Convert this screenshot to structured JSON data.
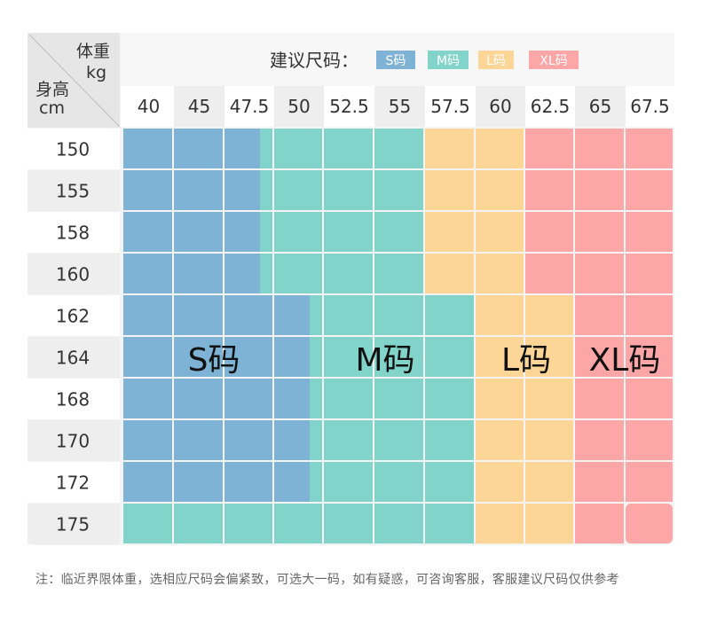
{
  "header": {
    "title": "建议尺码：",
    "legend": [
      {
        "label": "S码",
        "color": "#7fb3d5"
      },
      {
        "label": "M码",
        "color": "#82d3c9"
      },
      {
        "label": "L码",
        "color": "#fcd597"
      },
      {
        "label": "XL码",
        "color": "#fda6a8"
      }
    ]
  },
  "corner": {
    "weight_label": "体重",
    "weight_unit": "kg",
    "height_label": "身高",
    "height_unit": "cm"
  },
  "chart_data": {
    "type": "table",
    "weights": [
      "40",
      "45",
      "47.5",
      "50",
      "52.5",
      "55",
      "57.5",
      "60",
      "62.5",
      "65",
      "67.5"
    ],
    "heights": [
      "150",
      "155",
      "158",
      "160",
      "162",
      "164",
      "168",
      "170",
      "172",
      "175"
    ],
    "grid": [
      [
        "S",
        "S",
        "S/M",
        "M",
        "M",
        "M",
        "L",
        "L",
        "XL",
        "XL",
        "XL"
      ],
      [
        "S",
        "S",
        "S/M",
        "M",
        "M",
        "M",
        "L",
        "L",
        "XL",
        "XL",
        "XL"
      ],
      [
        "S",
        "S",
        "S/M",
        "M",
        "M",
        "M",
        "L",
        "L",
        "XL",
        "XL",
        "XL"
      ],
      [
        "S",
        "S",
        "S/M",
        "M",
        "M",
        "M",
        "L",
        "L",
        "XL",
        "XL",
        "XL"
      ],
      [
        "S",
        "S",
        "S",
        "S/M",
        "M",
        "M",
        "M",
        "L",
        "L",
        "XL",
        "XL"
      ],
      [
        "S",
        "S",
        "S",
        "S/M",
        "M",
        "M",
        "M",
        "L",
        "L",
        "XL",
        "XL"
      ],
      [
        "S",
        "S",
        "S",
        "S/M",
        "M",
        "M",
        "M",
        "L",
        "L",
        "XL",
        "XL"
      ],
      [
        "S",
        "S",
        "S",
        "S/M",
        "M",
        "M",
        "M",
        "L",
        "L",
        "XL",
        "XL"
      ],
      [
        "S",
        "S",
        "S",
        "S/M",
        "M",
        "M",
        "M",
        "L",
        "L",
        "XL",
        "XL"
      ],
      [
        "M",
        "M",
        "M",
        "M",
        "M",
        "M",
        "M",
        "L",
        "L",
        "XL",
        "XL"
      ]
    ],
    "region_labels": [
      "S码",
      "M码",
      "L码",
      "XL码"
    ],
    "colors": {
      "S": "#7fb3d5",
      "M": "#82d3c9",
      "L": "#fcd597",
      "XL": "#fda6a8"
    }
  },
  "note": "注：临近界限体重，选相应尺码会偏紧致，可选大一码，如有疑惑，可咨询客服，客服建议尺码仅供参考"
}
